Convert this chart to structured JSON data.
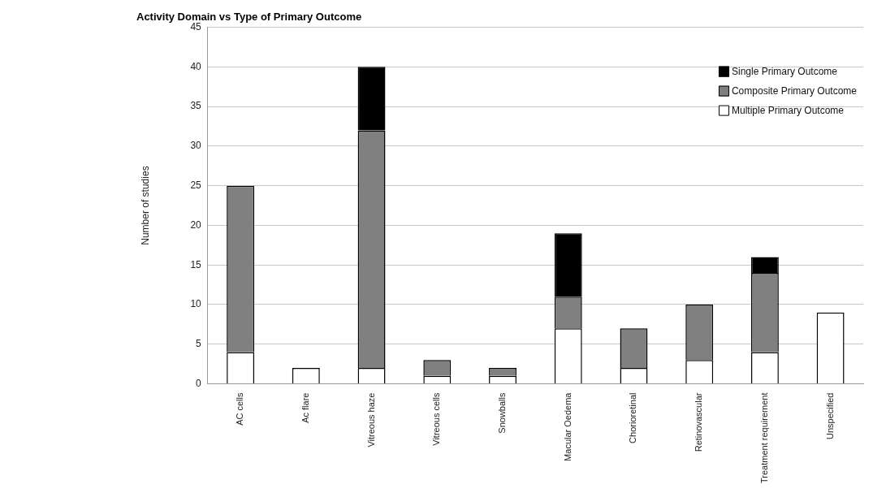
{
  "chart_data": {
    "type": "bar",
    "title": "Activity Domain vs Type of Primary Outcome",
    "ylabel": "Number of studies",
    "categories": [
      "AC cells",
      "Ac flare",
      "Vitreous haze",
      "Vitreous cells",
      "Snowballs",
      "Macular Oedema",
      "Chorioretinal",
      "Retinovascular",
      "Treatment requirement",
      "Unspecified"
    ],
    "series": [
      {
        "name": "Multiple Primary Outcome",
        "color": "#ffffff",
        "values": [
          4,
          2,
          2,
          1,
          1,
          7,
          2,
          3,
          4,
          9
        ]
      },
      {
        "name": "Composite Primary Outcome",
        "color": "#808080",
        "values": [
          21,
          0,
          30,
          2,
          1,
          4,
          5,
          7,
          10,
          0
        ]
      },
      {
        "name": "Single Primary Outcome",
        "color": "#000000",
        "values": [
          0,
          0,
          8,
          0,
          0,
          8,
          0,
          0,
          2,
          0
        ]
      }
    ],
    "stacked": true,
    "ylim": [
      0,
      45
    ],
    "yticks": [
      0,
      5,
      10,
      15,
      20,
      25,
      30,
      35,
      40,
      45
    ],
    "grid": "y",
    "legend": "top right"
  }
}
